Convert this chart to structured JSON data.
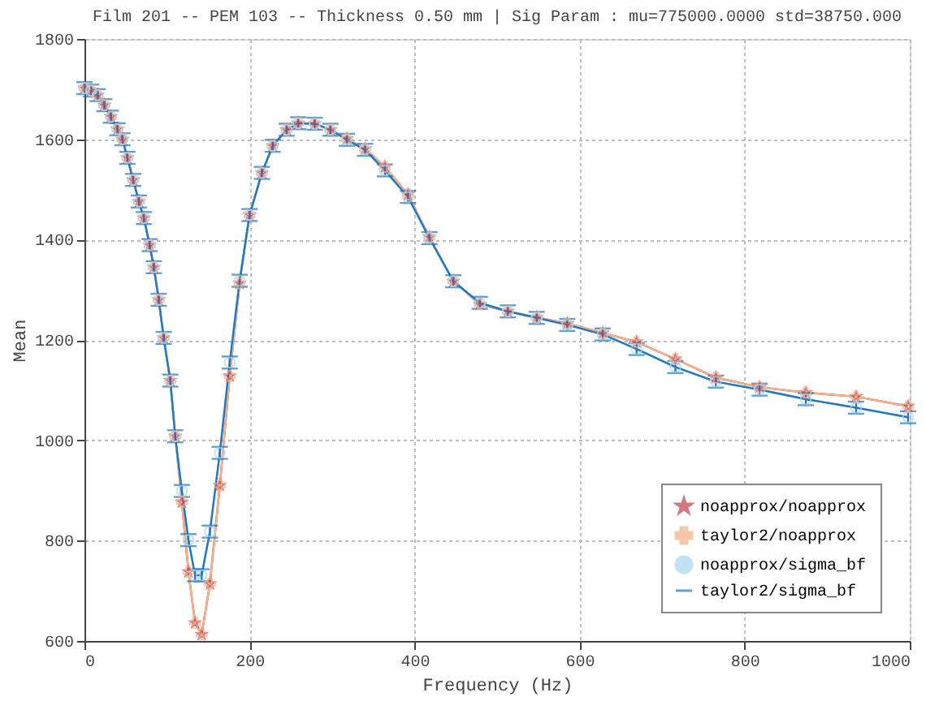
{
  "chart_data": {
    "type": "line",
    "title": "Film 201 -- PEM 103 -- Thickness 0.50 mm | Sig Param : mu=775000.0000  std=38750.000",
    "xlabel": "Frequency (Hz)",
    "ylabel": "Mean",
    "x": [
      0,
      8,
      16,
      24,
      32,
      40,
      46,
      52,
      59,
      66,
      72,
      79,
      84,
      90,
      96,
      104,
      110,
      118,
      126,
      134,
      142,
      152,
      164,
      176,
      188,
      200,
      215,
      228,
      245,
      259,
      279,
      298,
      318,
      340,
      364,
      392,
      418,
      447,
      479,
      513,
      548,
      585,
      628,
      669,
      716,
      765,
      818,
      874,
      935,
      998
    ],
    "series": [
      {
        "name": "noapprox/noapprox",
        "color": "#c0404a",
        "marker": "star",
        "line_style": "solid",
        "values": [
          1702,
          1697,
          1688,
          1668,
          1645,
          1620,
          1600,
          1563,
          1519,
          1476,
          1443,
          1389,
          1345,
          1280,
          1204,
          1119,
          1008,
          877,
          738,
          636,
          613,
          714,
          910,
          1128,
          1313,
          1449,
          1533,
          1587,
          1619,
          1632,
          1631,
          1619,
          1601,
          1581,
          1545,
          1490,
          1405,
          1317,
          1271,
          1257,
          1245,
          1233,
          1214,
          1196,
          1162,
          1125,
          1106,
          1095,
          1087,
          1068
        ]
      },
      {
        "name": "taylor2/noapprox",
        "color": "#f5b08a",
        "marker": "cross",
        "line_style": "solid",
        "values": [
          1702,
          1697,
          1688,
          1668,
          1645,
          1620,
          1600,
          1563,
          1519,
          1476,
          1443,
          1389,
          1345,
          1280,
          1204,
          1119,
          1008,
          877,
          738,
          636,
          613,
          714,
          910,
          1128,
          1313,
          1449,
          1533,
          1587,
          1619,
          1632,
          1631,
          1619,
          1601,
          1581,
          1545,
          1490,
          1405,
          1317,
          1271,
          1257,
          1245,
          1233,
          1214,
          1196,
          1162,
          1125,
          1106,
          1095,
          1087,
          1068
        ]
      },
      {
        "name": "noapprox/sigma_bf",
        "color": "#a6d8f0",
        "marker": "circle",
        "line_style": "solid",
        "values": [
          1702,
          1697,
          1688,
          1668,
          1645,
          1620,
          1600,
          1563,
          1519,
          1476,
          1443,
          1389,
          1345,
          1280,
          1204,
          1119,
          1008,
          899,
          801,
          731,
          731,
          818,
          975,
          1155,
          1318,
          1449,
          1533,
          1587,
          1619,
          1632,
          1631,
          1619,
          1599,
          1579,
          1538,
          1485,
          1403,
          1317,
          1274,
          1257,
          1244,
          1230,
          1211,
          1182,
          1146,
          1117,
          1101,
          1082,
          1065,
          1046
        ]
      },
      {
        "name": "taylor2/sigma_bf",
        "color": "#1f78c1",
        "marker": "none",
        "line_style": "solid",
        "errors": [
          12,
          12,
          12,
          12,
          12,
          12,
          12,
          12,
          12,
          12,
          12,
          12,
          12,
          12,
          12,
          12,
          12,
          12,
          12,
          12,
          12,
          12,
          12,
          12,
          12,
          12,
          12,
          12,
          12,
          12,
          12,
          12,
          12,
          12,
          12,
          12,
          12,
          12,
          12,
          12,
          12,
          12,
          12,
          12,
          12,
          12,
          12,
          12,
          12,
          12
        ],
        "values": [
          1702,
          1697,
          1688,
          1668,
          1645,
          1620,
          1600,
          1563,
          1519,
          1476,
          1443,
          1389,
          1345,
          1280,
          1204,
          1119,
          1008,
          899,
          801,
          731,
          731,
          818,
          975,
          1155,
          1318,
          1449,
          1533,
          1587,
          1619,
          1632,
          1631,
          1619,
          1599,
          1579,
          1538,
          1485,
          1403,
          1317,
          1274,
          1257,
          1244,
          1230,
          1211,
          1182,
          1146,
          1117,
          1101,
          1082,
          1065,
          1046
        ]
      }
    ],
    "xlim": [
      0,
      1000
    ],
    "xticks": [
      0,
      200,
      400,
      600,
      800,
      1000
    ],
    "ylim": [
      600,
      1800
    ],
    "yticks": [
      600,
      800,
      1000,
      1200,
      1400,
      1600,
      1800
    ],
    "grid": true,
    "legend": "bottom right"
  }
}
